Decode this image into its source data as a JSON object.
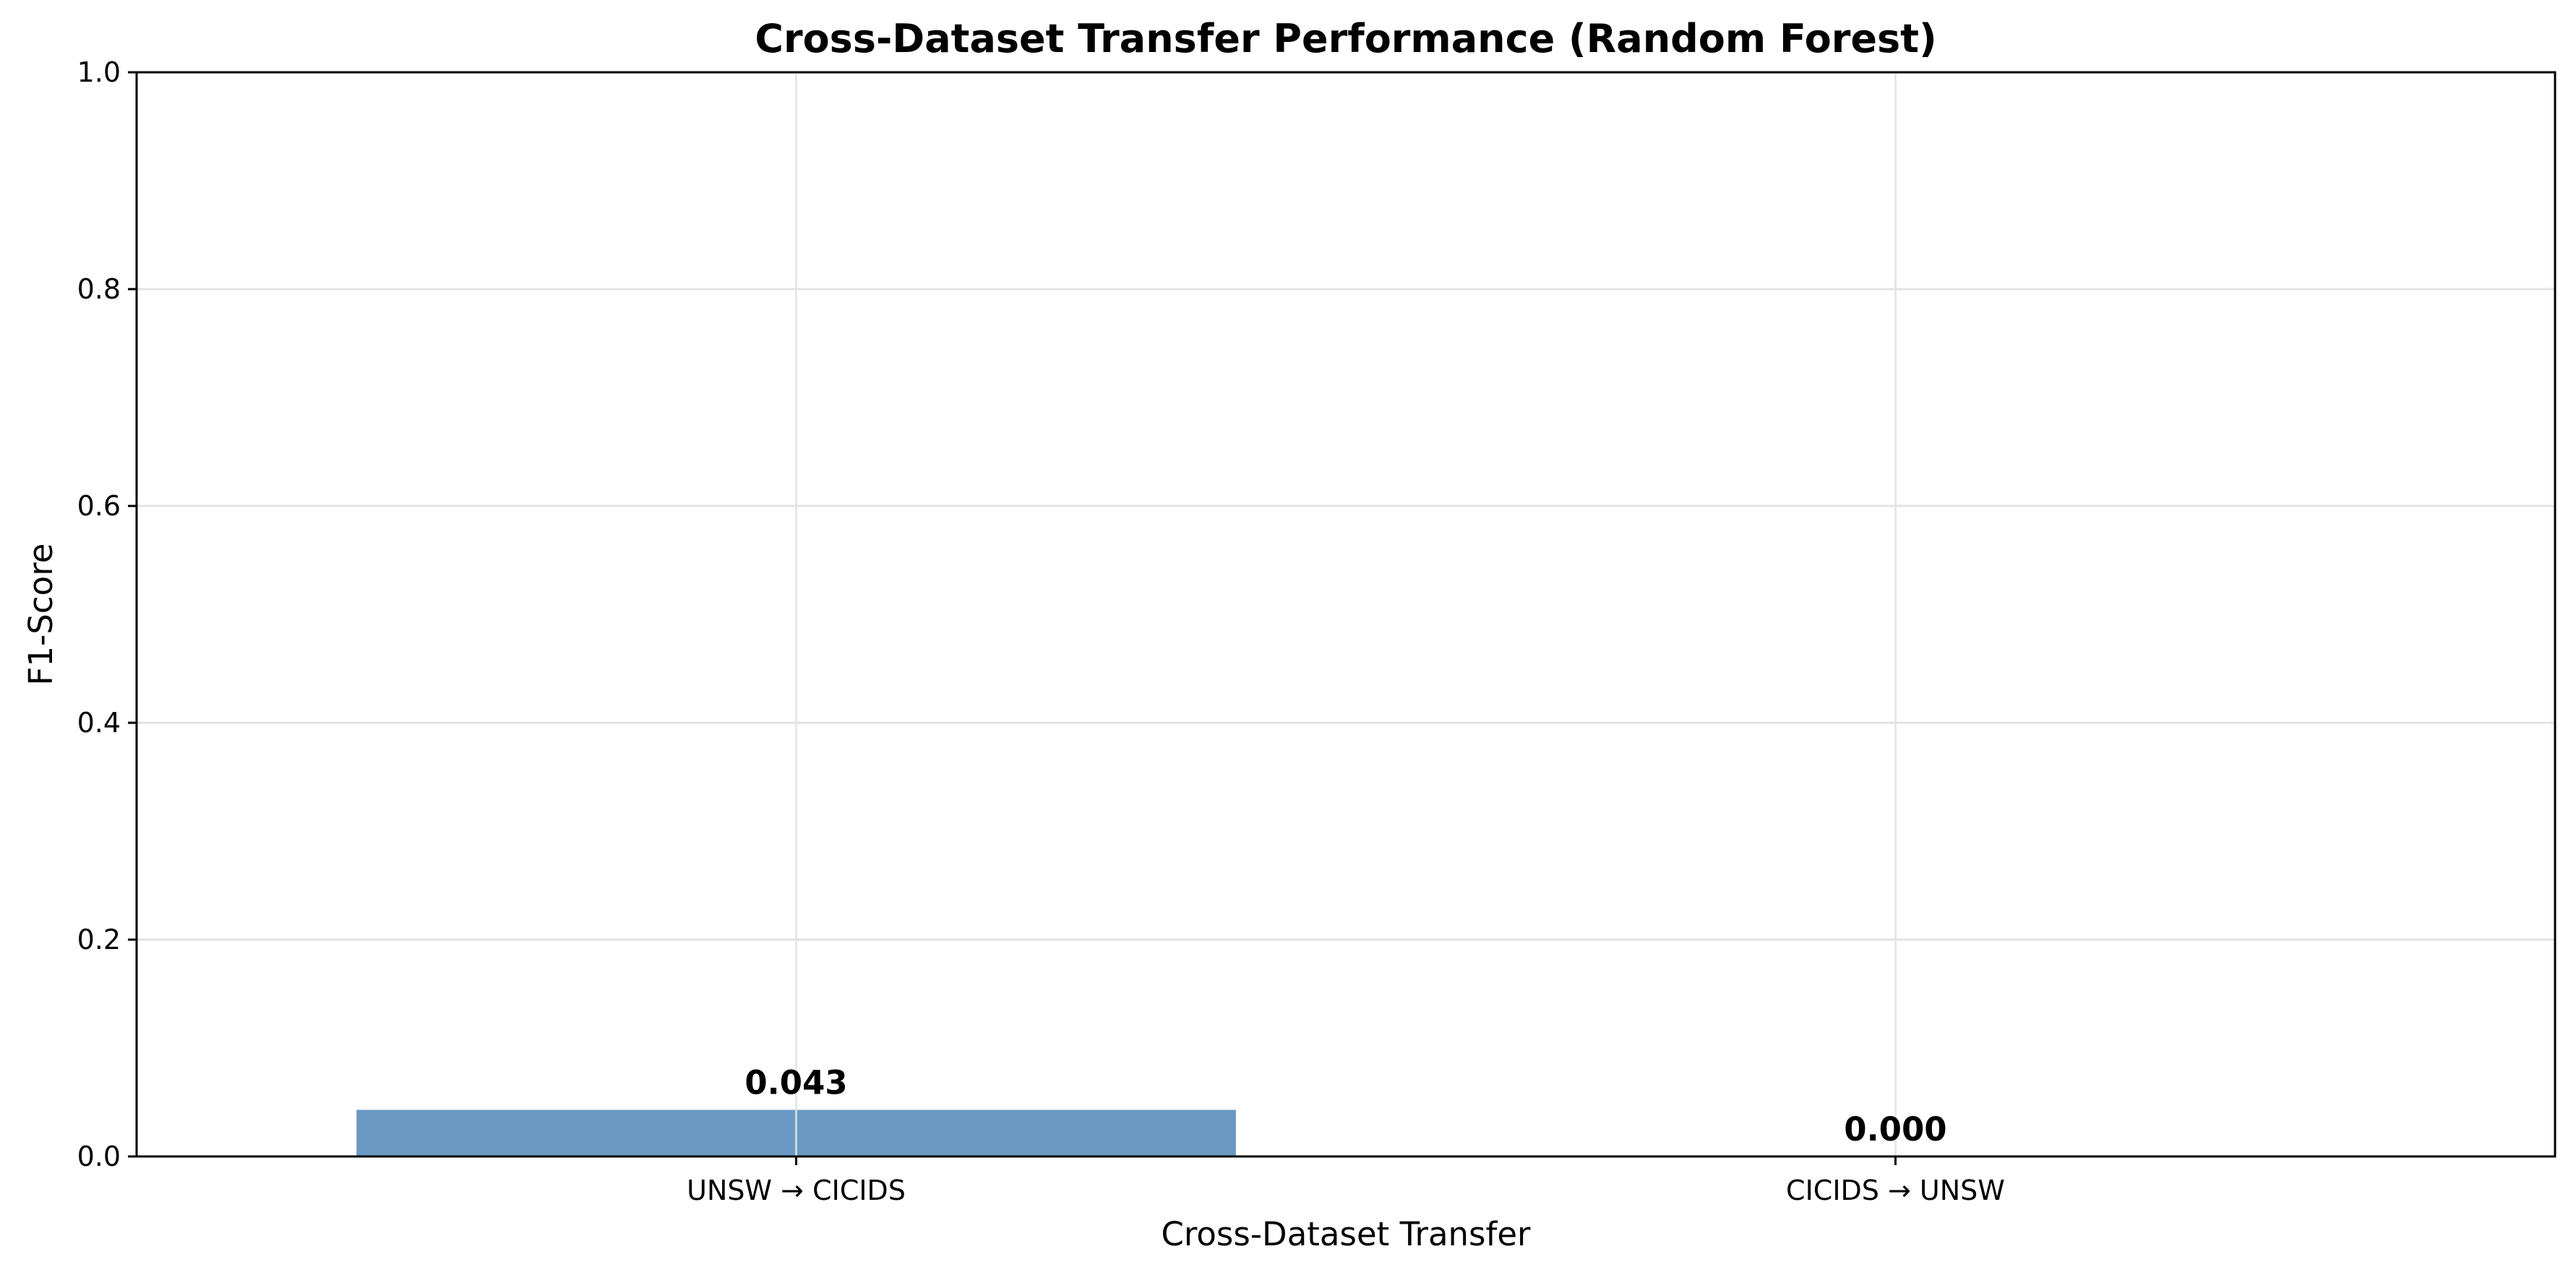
{
  "chart_data": {
    "type": "bar",
    "title": "Cross-Dataset Transfer Performance (Random Forest)",
    "xlabel": "Cross-Dataset Transfer",
    "ylabel": "F1-Score",
    "categories": [
      "UNSW → CICIDS",
      "CICIDS → UNSW"
    ],
    "values": [
      0.043,
      0.0
    ],
    "value_labels": [
      "0.043",
      "0.000"
    ],
    "ylim": [
      0,
      1.0
    ],
    "yticks": [
      0.0,
      0.2,
      0.4,
      0.6,
      0.8,
      1.0
    ],
    "ytick_labels": [
      "0.0",
      "0.2",
      "0.4",
      "0.6",
      "0.8",
      "1.0"
    ],
    "grid": true,
    "bar_color": "#6a9ac4",
    "grid_color": "#e3e3e3"
  }
}
